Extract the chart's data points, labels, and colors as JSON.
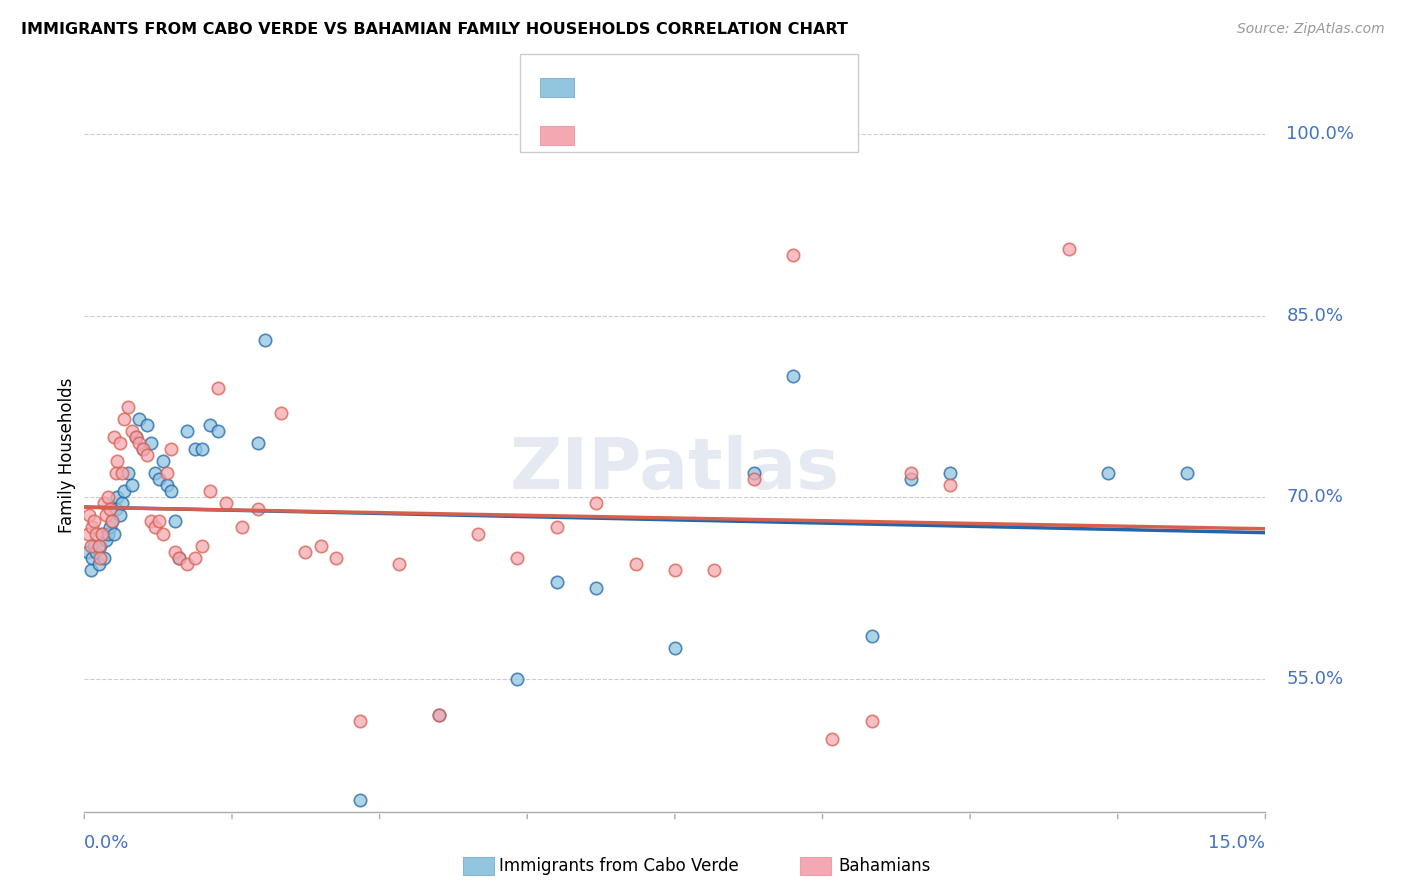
{
  "title": "IMMIGRANTS FROM CABO VERDE VS BAHAMIAN FAMILY HOUSEHOLDS CORRELATION CHART",
  "source_text": "Source: ZipAtlas.com",
  "ylabel": "Family Households",
  "y_ticks": [
    55.0,
    70.0,
    85.0,
    100.0
  ],
  "y_tick_labels": [
    "55.0%",
    "70.0%",
    "85.0%",
    "100.0%"
  ],
  "x_min": 0.0,
  "x_max": 15.0,
  "y_min": 44.0,
  "y_max": 103.0,
  "label1": "Immigrants from Cabo Verde",
  "label2": "Bahamians",
  "color1": "#92c5de",
  "color2": "#f4a9b2",
  "trendline_color1": "#2166ac",
  "trendline_color2": "#d6604d",
  "background_color": "#ffffff",
  "grid_color": "#cccccc",
  "watermark": "ZIPatlas",
  "scatter1_x": [
    0.05,
    0.08,
    0.1,
    0.12,
    0.15,
    0.18,
    0.2,
    0.22,
    0.25,
    0.28,
    0.3,
    0.32,
    0.35,
    0.38,
    0.4,
    0.42,
    0.45,
    0.48,
    0.5,
    0.55,
    0.6,
    0.65,
    0.7,
    0.75,
    0.8,
    0.85,
    0.9,
    0.95,
    1.0,
    1.05,
    1.1,
    1.15,
    1.2,
    1.3,
    1.4,
    1.5,
    1.6,
    1.7,
    2.2,
    2.3,
    3.5,
    4.5,
    5.5,
    6.0,
    6.5,
    7.5,
    8.5,
    9.0,
    10.0,
    10.5,
    11.0,
    13.0,
    14.0
  ],
  "scatter1_y": [
    65.5,
    64.0,
    65.0,
    66.0,
    65.5,
    64.5,
    66.0,
    67.0,
    65.0,
    66.5,
    67.0,
    67.5,
    68.0,
    67.0,
    69.0,
    70.0,
    68.5,
    69.5,
    70.5,
    72.0,
    71.0,
    75.0,
    76.5,
    74.0,
    76.0,
    74.5,
    72.0,
    71.5,
    73.0,
    71.0,
    70.5,
    68.0,
    65.0,
    75.5,
    74.0,
    74.0,
    76.0,
    75.5,
    74.5,
    83.0,
    45.0,
    52.0,
    55.0,
    63.0,
    62.5,
    57.5,
    72.0,
    80.0,
    58.5,
    71.5,
    72.0,
    72.0,
    72.0
  ],
  "scatter2_x": [
    0.04,
    0.06,
    0.08,
    0.1,
    0.12,
    0.15,
    0.18,
    0.2,
    0.22,
    0.25,
    0.28,
    0.3,
    0.32,
    0.35,
    0.38,
    0.4,
    0.42,
    0.45,
    0.48,
    0.5,
    0.55,
    0.6,
    0.65,
    0.7,
    0.75,
    0.8,
    0.85,
    0.9,
    0.95,
    1.0,
    1.05,
    1.1,
    1.15,
    1.2,
    1.3,
    1.4,
    1.5,
    1.6,
    1.7,
    1.8,
    2.0,
    2.2,
    2.5,
    2.8,
    3.0,
    3.2,
    3.5,
    4.0,
    4.5,
    5.0,
    5.5,
    6.0,
    6.5,
    7.0,
    7.5,
    8.0,
    8.5,
    9.0,
    9.5,
    10.0,
    10.5,
    11.0,
    12.5
  ],
  "scatter2_y": [
    67.0,
    68.5,
    66.0,
    67.5,
    68.0,
    67.0,
    66.0,
    65.0,
    67.0,
    69.5,
    68.5,
    70.0,
    69.0,
    68.0,
    75.0,
    72.0,
    73.0,
    74.5,
    72.0,
    76.5,
    77.5,
    75.5,
    75.0,
    74.5,
    74.0,
    73.5,
    68.0,
    67.5,
    68.0,
    67.0,
    72.0,
    74.0,
    65.5,
    65.0,
    64.5,
    65.0,
    66.0,
    70.5,
    79.0,
    69.5,
    67.5,
    69.0,
    77.0,
    65.5,
    66.0,
    65.0,
    51.5,
    64.5,
    52.0,
    67.0,
    65.0,
    67.5,
    69.5,
    64.5,
    64.0,
    64.0,
    71.5,
    90.0,
    50.0,
    51.5,
    72.0,
    71.0,
    90.5
  ]
}
